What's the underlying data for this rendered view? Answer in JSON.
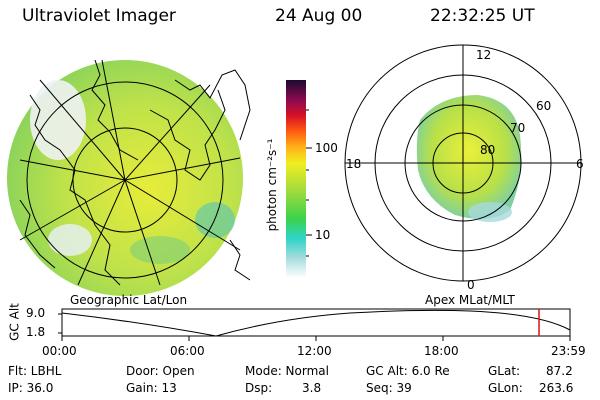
{
  "header": {
    "title": "Ultraviolet Imager",
    "date": "24 Aug 00",
    "time": "22:32:25 UT"
  },
  "colorbar": {
    "unit_label": "photon cm⁻²s⁻¹",
    "tick_100": "100",
    "tick_10": "10"
  },
  "polar_plot": {
    "mlt_labels": {
      "top": "12",
      "right": "6",
      "bottom": "0",
      "left": "18"
    },
    "lat_labels": {
      "l60": "60",
      "l70": "70",
      "l80": "80"
    }
  },
  "map_caption": "Geographic Lat/Lon",
  "polar_caption": "Apex MLat/MLT",
  "timeline": {
    "ylabel": "GC Alt",
    "y_max": "9.0",
    "y_min": "1.8",
    "ticks": [
      "00:00",
      "06:00",
      "12:00",
      "18:00",
      "23:59"
    ],
    "current_fraction": 0.939,
    "marker_color": "#dd1111"
  },
  "stats": {
    "filter": "Flt: LBHL",
    "ip": "IP: 36.0",
    "door": "Door: Open",
    "gain": "Gain: 13",
    "mode": "Mode: Normal",
    "dsp_label": "Dsp:",
    "dsp_value": "3.8",
    "gc_alt": "GC Alt: 6.0 Re",
    "seq": "Seq: 39",
    "glat": "GLat:",
    "glat_value": "87.2",
    "glon": "GLon:",
    "glon_value": "263.6"
  }
}
